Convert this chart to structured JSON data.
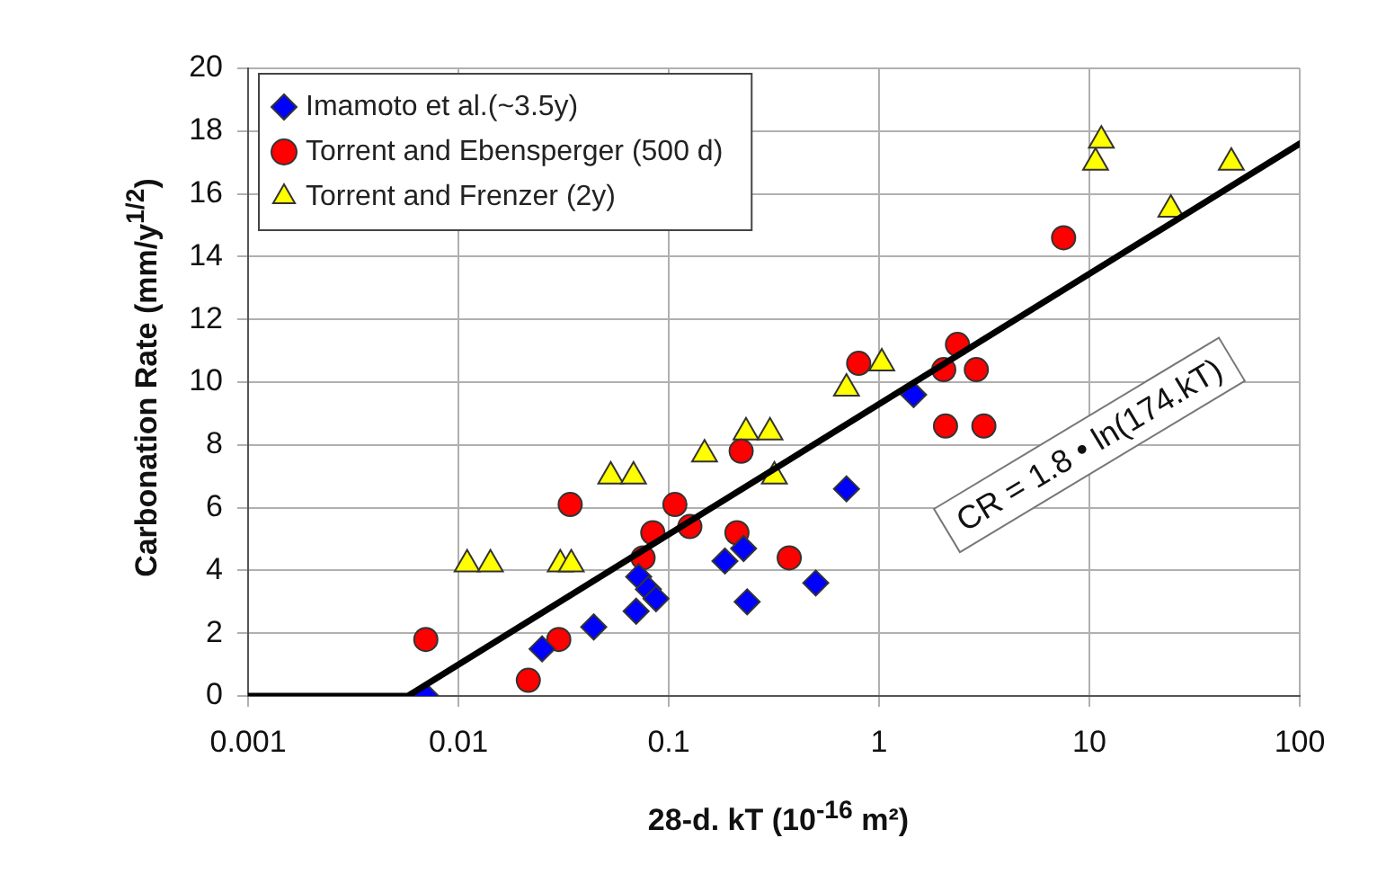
{
  "chart_data": {
    "type": "scatter",
    "xlabel": "28-d. kT (10$^{-16}$ m²)",
    "ylabel": "Carbonation Rate (mm/y$^{1/2}$)",
    "log": "x",
    "xlim": [
      0.001,
      100
    ],
    "xticks": [
      0.001,
      0.01,
      0.1,
      1,
      10,
      100
    ],
    "ylim": [
      0,
      20
    ],
    "yticks": [
      0,
      2,
      4,
      6,
      8,
      10,
      12,
      14,
      16,
      18,
      20
    ],
    "grid": true,
    "legend": "top left",
    "annotations": [
      "CR = 1.8 • ln(174.kT)"
    ],
    "series": [
      {
        "name": "Imamoto et al.(~3.5y)",
        "marker": "diamond",
        "color": "#0000ff",
        "x": [
          0.007,
          0.025,
          0.044,
          0.07,
          0.072,
          0.08,
          0.087,
          0.185,
          0.227,
          0.236,
          0.5,
          0.7,
          1.46
        ],
        "values": [
          0,
          1.5,
          2.2,
          2.7,
          3.8,
          3.4,
          3.1,
          4.3,
          4.7,
          3.0,
          3.6,
          6.6,
          9.6
        ]
      },
      {
        "name": "Torrent and Ebensperger (500 d)",
        "marker": "circle",
        "color": "#ff0000",
        "x": [
          0.007,
          0.0215,
          0.03,
          0.034,
          0.0755,
          0.084,
          0.107,
          0.126,
          0.211,
          0.221,
          0.374,
          0.8,
          2.03,
          2.36,
          2.9,
          2.07,
          3.15,
          7.54
        ],
        "values": [
          1.8,
          0.5,
          1.8,
          6.1,
          4.4,
          5.2,
          6.1,
          5.4,
          5.2,
          7.8,
          4.4,
          10.6,
          10.4,
          11.2,
          10.4,
          8.6,
          8.6,
          14.6
        ]
      },
      {
        "name": "Torrent and Frenzer (2y)",
        "marker": "triangle",
        "color": "#ffff00",
        "x": [
          0.011,
          0.0142,
          0.0305,
          0.0344,
          0.053,
          0.068,
          0.148,
          0.233,
          0.303,
          0.318,
          0.7,
          1.03,
          10.7,
          11.4,
          24.4,
          47.3
        ],
        "values": [
          4.2,
          4.2,
          4.2,
          4.2,
          7.0,
          7.0,
          7.7,
          8.4,
          8.4,
          7.0,
          9.8,
          10.6,
          17.0,
          17.7,
          15.5,
          17.0
        ]
      },
      {
        "type": "line",
        "marker": "none",
        "color": "#000000",
        "x": [
          0.001,
          0.00575,
          100
        ],
        "values": [
          0,
          0,
          17.6
        ]
      }
    ]
  }
}
